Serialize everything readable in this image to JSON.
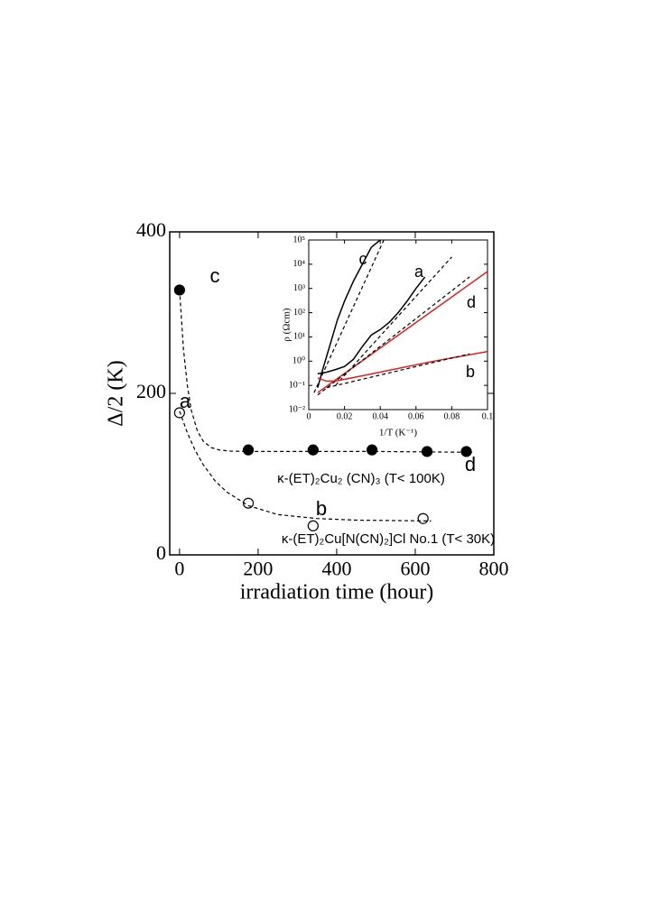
{
  "chart_data": [
    {
      "type": "scatter",
      "xlabel": "irradiation time (hour)",
      "ylabel": "Δ/2 (K)",
      "xlim": [
        -25,
        800
      ],
      "ylim": [
        0,
        400
      ],
      "xticks": [
        0,
        200,
        400,
        600,
        800
      ],
      "yticks": [
        0,
        200,
        400
      ],
      "series": [
        {
          "marker": "filled",
          "color": "#000000",
          "x": [
            0,
            175,
            340,
            490,
            630,
            730
          ],
          "values": [
            328,
            130,
            130,
            130,
            128,
            128
          ]
        },
        {
          "marker": "open",
          "color": "#000000",
          "x": [
            0,
            175,
            340,
            620
          ],
          "values": [
            176,
            64,
            36,
            45
          ]
        },
        {
          "style": "dashed",
          "color": "#000000",
          "x": [
            0,
            10,
            20,
            30,
            45,
            60,
            80,
            100,
            130,
            175,
            300,
            500,
            745
          ],
          "values": [
            328,
            255,
            209,
            179,
            154,
            141,
            133,
            130,
            128.5,
            128,
            128,
            128,
            127
          ]
        },
        {
          "style": "dashed",
          "color": "#000000",
          "x": [
            0,
            20,
            40,
            60,
            90,
            120,
            175,
            250,
            350,
            450,
            640
          ],
          "values": [
            178,
            151,
            129,
            112,
            92,
            78,
            61,
            50,
            45,
            43,
            42
          ]
        }
      ],
      "annotations": [
        "c",
        "a",
        "b",
        "d",
        "κ-(ET)₂Cu₂ (CN)₃ (T< 100K)",
        "κ-(ET)₂Cu[N(CN)₂]Cl No.1 (T< 30K)"
      ]
    },
    {
      "type": "line",
      "xlabel": "1/T (K⁻¹)",
      "ylabel": "ρ (Ωcm)",
      "log_y": true,
      "xlim": [
        0,
        0.1
      ],
      "ylim": [
        0.01,
        100000
      ],
      "xticks": [
        0,
        0.02,
        0.04,
        0.06,
        0.08,
        0.1
      ],
      "yticks": [
        {
          "value": 0.01,
          "label": "10⁻²"
        },
        {
          "value": 0.1,
          "label": "10⁻¹"
        },
        {
          "value": 1,
          "label": "10⁰"
        },
        {
          "value": 10,
          "label": "10¹"
        },
        {
          "value": 100,
          "label": "10²"
        },
        {
          "value": 1000,
          "label": "10³"
        },
        {
          "value": 10000,
          "label": "10⁴"
        },
        {
          "value": 100000,
          "label": "10⁵"
        }
      ],
      "series": [
        {
          "color": "#000000",
          "style": "solid",
          "x": [
            0.005,
            0.008,
            0.012,
            0.016,
            0.02,
            0.025,
            0.03,
            0.035,
            0.04
          ],
          "values": [
            0.08,
            0.5,
            5,
            50,
            300,
            2000,
            10000,
            50000,
            100000
          ]
        },
        {
          "color": "#000000",
          "style": "dashed",
          "x": [
            0.003,
            0.042
          ],
          "values": [
            0.05,
            100000
          ]
        },
        {
          "color": "#000000",
          "style": "solid",
          "x": [
            0.005,
            0.01,
            0.015,
            0.02,
            0.025,
            0.03,
            0.035,
            0.04,
            0.045,
            0.05,
            0.055,
            0.06,
            0.065
          ],
          "values": [
            0.3,
            0.35,
            0.45,
            0.6,
            1.2,
            4,
            12,
            20,
            40,
            100,
            300,
            1000,
            3000
          ]
        },
        {
          "color": "#000000",
          "style": "dashed",
          "x": [
            0.015,
            0.08
          ],
          "values": [
            0.1,
            20000
          ]
        },
        {
          "color": "#e02020",
          "style": "solid",
          "x": [
            0.005,
            0.1
          ],
          "values": [
            0.05,
            5000
          ]
        },
        {
          "color": "#000000",
          "style": "dashed",
          "x": [
            0.005,
            0.09
          ],
          "values": [
            0.04,
            3000
          ]
        },
        {
          "color": "#e02020",
          "style": "solid",
          "x": [
            0.005,
            0.01,
            0.015,
            0.03,
            0.05,
            0.07,
            0.1
          ],
          "values": [
            0.2,
            0.15,
            0.15,
            0.25,
            0.5,
            1,
            2.5
          ]
        },
        {
          "color": "#000000",
          "style": "dashed",
          "x": [
            0.01,
            0.09
          ],
          "values": [
            0.08,
            2
          ]
        }
      ],
      "annotations": [
        "c",
        "a",
        "d",
        "b"
      ]
    }
  ]
}
